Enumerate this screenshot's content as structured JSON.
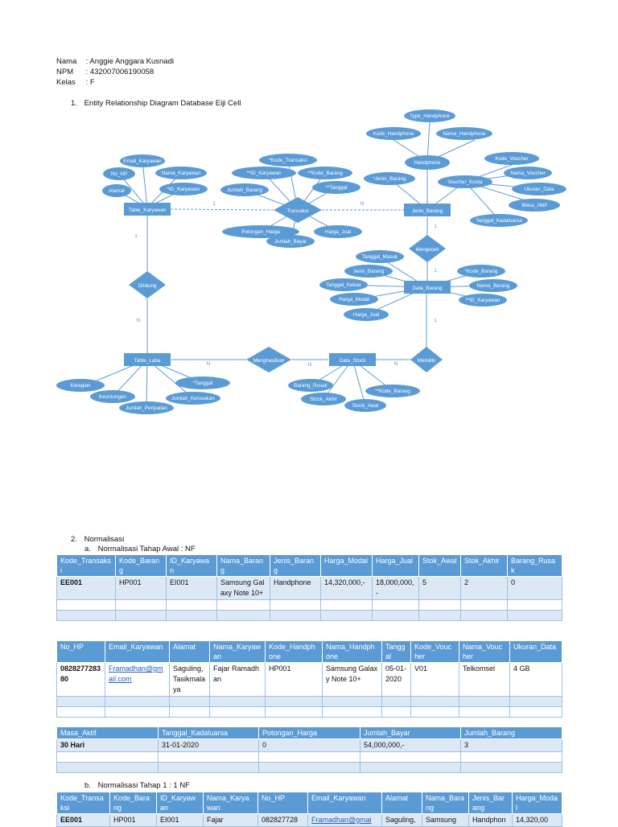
{
  "header": {
    "nama_label": "Nama",
    "nama_value": ": Anggie Anggara Kusnadi",
    "npm_label": "NPM",
    "npm_value": ": 432007006190058",
    "kelas_label": "Kelas",
    "kelas_value": ": F"
  },
  "section1": {
    "num": "1.",
    "title": "Entity Relationship Diagram Database Eiji Cell"
  },
  "erd": {
    "entities": [
      "Table_Karyawan",
      "Jenis_Barang",
      "Data_Barang",
      "Data_Stock",
      "Table_Laba"
    ],
    "relations": [
      "Transaksi",
      "Mengecek",
      "Dihitung",
      "Menghasilkan",
      "Memiliki"
    ],
    "attributes": [
      "Email_Karyawan",
      "No_HP",
      "Nama_Karyawan",
      "Alamat",
      "*ID_Karyawan",
      "*Kode_Transaksi",
      "**ID_Karyawan",
      "**Kode_Barang",
      "Jumlah_Barang",
      "**Tanggal",
      "Potongan_Harga",
      "Harga_Jual",
      "Jumlah_Bayar",
      "Type_Handphone",
      "Kode_Handphone",
      "Nama_Handphone",
      "Handphone",
      "Kode_Voucher",
      "Nama_Voucher",
      "Voucher_Kuota",
      "Ukuran_Data",
      "Masa_Aktif",
      "Tanggal_Kadaluarsa",
      "*Jenis_Barang",
      "Tanggal_Masuk",
      "Jenis_Barang",
      "Tanggal_Keluar",
      "Harga_Modal",
      "Harga_Jual",
      "*Kode_Barang",
      "Nama_Barang",
      "**ID_Karyawan",
      "Keragian",
      "Keuntungan",
      "*Tanggal",
      "Jumlah_Kerusakan",
      "Jumlah_Penjualan",
      "Barang_Rusak",
      "Stock_Akhir",
      "**Kode_Barang",
      "Stock_Awal"
    ],
    "cardinalities": [
      "1",
      "N",
      "1",
      "1",
      "1",
      "N",
      "N",
      "N",
      "1",
      "N"
    ]
  },
  "section2": {
    "num": "2.",
    "title": "Normalisasi"
  },
  "sub_a": {
    "label": "a.",
    "title": "Normalisasi Tahap Awal : NF"
  },
  "table1": {
    "headers": [
      "Kode_Transaksi",
      "Kode_Barang",
      "ID_Karyawan",
      "Nama_Barang",
      "Jenis_Barang",
      "Harga_Modal",
      "Harga_Jual",
      "Stok_Awal",
      "Stok_Akhir",
      "Barang_Rusak"
    ],
    "row": [
      "EE001",
      "HP001",
      "EI001",
      "Samsung Galaxy Note 10+",
      "Handphone",
      "14,320,000,-",
      "18,000,000,-",
      "5",
      "2",
      "0"
    ]
  },
  "table2": {
    "headers": [
      "No_HP",
      "Email_Karyawan",
      "Alamat",
      "Nama_Karyawan",
      "Kode_Handphone",
      "Nama_Handphone",
      "Tanggal",
      "Kode_Voucher",
      "Nama_Voucher",
      "Ukuran_Data"
    ],
    "row": [
      "082827728380",
      "Framadhan@gmail.com",
      "Saguling, Tasikmalaya",
      "Fajar Ramadhan",
      "HP001",
      "Samsung Galaxy Note 10+",
      "05-01-2020",
      "V01",
      "Telkomsel",
      "4 GB"
    ]
  },
  "table3": {
    "headers": [
      "Masa_Aktif",
      "Tanggal_Kadaluarsa",
      "Potongan_Harga",
      "Jumlah_Bayar",
      "Jumlah_Barang"
    ],
    "row": [
      "30 Hari",
      "31-01-2020",
      "0",
      "54,000,000,-",
      "3"
    ]
  },
  "sub_b": {
    "label": "b.",
    "title": "Normalisasi Tahap 1 : 1 NF"
  },
  "table4": {
    "headers": [
      "Kode_Transaksi",
      "Kode_Barang",
      "ID_Karyawan",
      "Nama_Karyawan",
      "No_HP",
      "Email_Karyawan",
      "Alamat",
      "Nama_Barang",
      "Jenis_Barang",
      "Harga_Modal"
    ],
    "row": [
      "EE001",
      "HP001",
      "EI001",
      "Fajar",
      "082827728",
      "Framadhan@gmai",
      "Saguling,",
      "Samsung",
      "Handphon",
      "14,320,00"
    ]
  },
  "colors": {
    "shape_fill": "#5b9bd5",
    "header_fill": "#5b9bd5",
    "band_fill": "#dde8f5",
    "link": "#1f5fbf"
  }
}
